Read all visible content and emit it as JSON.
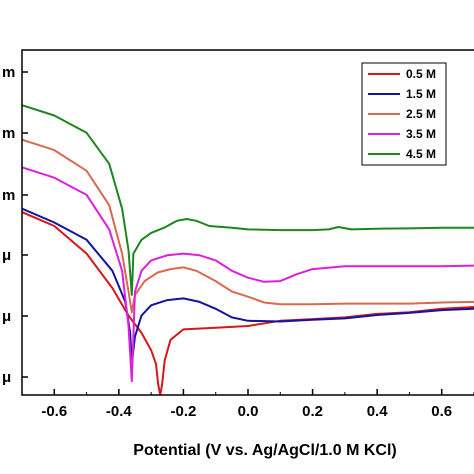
{
  "chart_data": {
    "type": "line",
    "xlabel": "Potential (V vs. Ag/AgCl/1.0 M KCl)",
    "xlim": [
      -0.7,
      0.7
    ],
    "x_ticks": [
      "-0.6",
      "-0.4",
      "-0.2",
      "0.0",
      "0.2",
      "0.4",
      "0.6"
    ],
    "y_tick_labels": [
      "m",
      "m",
      "m",
      "μ",
      "μ",
      "μ"
    ],
    "legend_position": "top-right",
    "series": [
      {
        "name": "0.5 M",
        "color": "#d81818",
        "points": [
          [
            -0.7,
            0.53
          ],
          [
            -0.6,
            0.49
          ],
          [
            -0.5,
            0.41
          ],
          [
            -0.42,
            0.31
          ],
          [
            -0.37,
            0.23
          ],
          [
            -0.33,
            0.18
          ],
          [
            -0.3,
            0.13
          ],
          [
            -0.285,
            0.09
          ],
          [
            -0.278,
            0.03
          ],
          [
            -0.272,
            0.0
          ],
          [
            -0.266,
            0.03
          ],
          [
            -0.258,
            0.1
          ],
          [
            -0.24,
            0.16
          ],
          [
            -0.2,
            0.19
          ],
          [
            -0.1,
            0.195
          ],
          [
            0.0,
            0.2
          ],
          [
            0.1,
            0.215
          ],
          [
            0.2,
            0.22
          ],
          [
            0.3,
            0.225
          ],
          [
            0.4,
            0.235
          ],
          [
            0.5,
            0.24
          ],
          [
            0.6,
            0.25
          ],
          [
            0.7,
            0.255
          ]
        ]
      },
      {
        "name": "1.5 M",
        "color": "#1414a0",
        "points": [
          [
            -0.7,
            0.54
          ],
          [
            -0.6,
            0.5
          ],
          [
            -0.5,
            0.45
          ],
          [
            -0.42,
            0.36
          ],
          [
            -0.38,
            0.27
          ],
          [
            -0.365,
            0.18
          ],
          [
            -0.36,
            0.09
          ],
          [
            -0.35,
            0.17
          ],
          [
            -0.33,
            0.23
          ],
          [
            -0.3,
            0.26
          ],
          [
            -0.25,
            0.275
          ],
          [
            -0.2,
            0.28
          ],
          [
            -0.15,
            0.27
          ],
          [
            -0.1,
            0.25
          ],
          [
            -0.05,
            0.225
          ],
          [
            0.0,
            0.215
          ],
          [
            0.1,
            0.213
          ],
          [
            0.2,
            0.218
          ],
          [
            0.3,
            0.222
          ],
          [
            0.4,
            0.232
          ],
          [
            0.5,
            0.238
          ],
          [
            0.6,
            0.246
          ],
          [
            0.7,
            0.25
          ]
        ]
      },
      {
        "name": "2.5 M",
        "color": "#d86a50",
        "points": [
          [
            -0.7,
            0.74
          ],
          [
            -0.6,
            0.71
          ],
          [
            -0.5,
            0.65
          ],
          [
            -0.43,
            0.55
          ],
          [
            -0.39,
            0.41
          ],
          [
            -0.37,
            0.3
          ],
          [
            -0.36,
            0.24
          ],
          [
            -0.35,
            0.29
          ],
          [
            -0.32,
            0.33
          ],
          [
            -0.28,
            0.355
          ],
          [
            -0.24,
            0.365
          ],
          [
            -0.2,
            0.37
          ],
          [
            -0.16,
            0.36
          ],
          [
            -0.1,
            0.33
          ],
          [
            -0.05,
            0.3
          ],
          [
            0.0,
            0.285
          ],
          [
            0.05,
            0.268
          ],
          [
            0.1,
            0.263
          ],
          [
            0.2,
            0.263
          ],
          [
            0.3,
            0.265
          ],
          [
            0.4,
            0.265
          ],
          [
            0.5,
            0.265
          ],
          [
            0.6,
            0.268
          ],
          [
            0.7,
            0.27
          ]
        ]
      },
      {
        "name": "3.5 M",
        "color": "#dd20dd",
        "points": [
          [
            -0.7,
            0.66
          ],
          [
            -0.6,
            0.63
          ],
          [
            -0.5,
            0.58
          ],
          [
            -0.43,
            0.48
          ],
          [
            -0.39,
            0.36
          ],
          [
            -0.37,
            0.2
          ],
          [
            -0.36,
            0.04
          ],
          [
            -0.35,
            0.3
          ],
          [
            -0.33,
            0.36
          ],
          [
            -0.3,
            0.39
          ],
          [
            -0.25,
            0.405
          ],
          [
            -0.2,
            0.41
          ],
          [
            -0.15,
            0.405
          ],
          [
            -0.1,
            0.39
          ],
          [
            -0.05,
            0.36
          ],
          [
            0.0,
            0.34
          ],
          [
            0.05,
            0.328
          ],
          [
            0.1,
            0.33
          ],
          [
            0.15,
            0.35
          ],
          [
            0.2,
            0.365
          ],
          [
            0.3,
            0.373
          ],
          [
            0.4,
            0.373
          ],
          [
            0.5,
            0.373
          ],
          [
            0.6,
            0.373
          ],
          [
            0.7,
            0.375
          ]
        ]
      },
      {
        "name": "4.5 M",
        "color": "#1e861e",
        "points": [
          [
            -0.7,
            0.84
          ],
          [
            -0.6,
            0.81
          ],
          [
            -0.5,
            0.76
          ],
          [
            -0.43,
            0.67
          ],
          [
            -0.39,
            0.54
          ],
          [
            -0.37,
            0.42
          ],
          [
            -0.36,
            0.29
          ],
          [
            -0.355,
            0.41
          ],
          [
            -0.33,
            0.45
          ],
          [
            -0.3,
            0.47
          ],
          [
            -0.26,
            0.485
          ],
          [
            -0.22,
            0.505
          ],
          [
            -0.19,
            0.51
          ],
          [
            -0.16,
            0.505
          ],
          [
            -0.12,
            0.49
          ],
          [
            -0.05,
            0.485
          ],
          [
            0.0,
            0.48
          ],
          [
            0.1,
            0.478
          ],
          [
            0.2,
            0.478
          ],
          [
            0.25,
            0.48
          ],
          [
            0.28,
            0.487
          ],
          [
            0.32,
            0.48
          ],
          [
            0.4,
            0.482
          ],
          [
            0.5,
            0.483
          ],
          [
            0.6,
            0.485
          ],
          [
            0.7,
            0.485
          ]
        ]
      }
    ]
  }
}
